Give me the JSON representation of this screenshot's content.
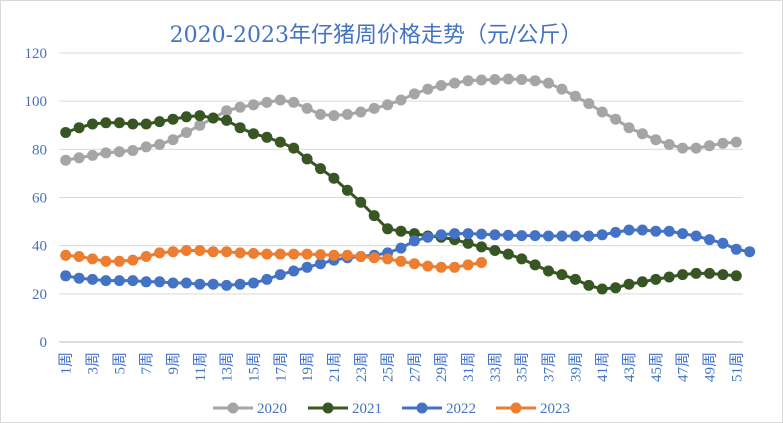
{
  "chart_data": {
    "type": "line",
    "title": "2020-2023年仔猪周价格走势（元/公斤）",
    "xlabel": "",
    "ylabel": "",
    "ylim": [
      0,
      120
    ],
    "yticks": [
      "0",
      "20",
      "40",
      "60",
      "80",
      "100",
      "120"
    ],
    "ytick_values": [
      0,
      20,
      40,
      60,
      80,
      100,
      120
    ],
    "x_tick_labels": [
      "1周",
      "3周",
      "5周",
      "7周",
      "9周",
      "11周",
      "13周",
      "15周",
      "17周",
      "19周",
      "21周",
      "23周",
      "25周",
      "27周",
      "29周",
      "31周",
      "33周",
      "35周",
      "37周",
      "39周",
      "41周",
      "43周",
      "45周",
      "47周",
      "49周",
      "51周"
    ],
    "x_tick_weeks": [
      1,
      3,
      5,
      7,
      9,
      11,
      13,
      15,
      17,
      19,
      21,
      23,
      25,
      27,
      29,
      31,
      33,
      35,
      37,
      39,
      41,
      43,
      45,
      47,
      49,
      51
    ],
    "grid": true,
    "legend_position": "bottom",
    "series": [
      {
        "name": "2020",
        "color": "#a5a5a5",
        "values": [
          75.5,
          76.5,
          77.5,
          78.5,
          79,
          79.5,
          81,
          82,
          84,
          87,
          90,
          93,
          96,
          97.5,
          98.5,
          99.5,
          100.5,
          99.5,
          97,
          94.5,
          94,
          94.5,
          95.5,
          97,
          98.5,
          100.5,
          103,
          105,
          106.5,
          107.5,
          108.5,
          108.8,
          109,
          109.2,
          109,
          108.5,
          107.5,
          105,
          102,
          99,
          95.5,
          92.5,
          89,
          86.5,
          84,
          82,
          80.5,
          80.5,
          81.5,
          82.5,
          83
        ]
      },
      {
        "name": "2021",
        "color": "#375623",
        "values": [
          87,
          89,
          90.5,
          91,
          91,
          90.5,
          90.5,
          91.5,
          92.5,
          93.5,
          94,
          93,
          92,
          89,
          86.5,
          85,
          83,
          80.5,
          76,
          72,
          68,
          63,
          58,
          52.5,
          47,
          46,
          45,
          44,
          43.5,
          42.5,
          41,
          39.5,
          38,
          36.5,
          34.5,
          32,
          29.5,
          28,
          26,
          23.5,
          22,
          22.5,
          24,
          25,
          26,
          27,
          28,
          28.5,
          28.5,
          28,
          27.5
        ]
      },
      {
        "name": "2022",
        "color": "#4472c4",
        "values": [
          27.5,
          26.5,
          26,
          25.5,
          25.5,
          25.5,
          25,
          25,
          24.5,
          24.5,
          24,
          24,
          23.5,
          24,
          24.5,
          26,
          28,
          29.5,
          31,
          32.5,
          34,
          35,
          35.5,
          36,
          37,
          39,
          42,
          43.5,
          44.5,
          45,
          45,
          44.8,
          44.5,
          44.3,
          44.2,
          44.2,
          44,
          44,
          44,
          44,
          44.5,
          45.5,
          46.5,
          46.5,
          46,
          46,
          45,
          44,
          42.5,
          41,
          38.5,
          37.5
        ]
      },
      {
        "name": "2023",
        "color": "#ed7d31",
        "values": [
          36,
          35.5,
          34.5,
          33.5,
          33.5,
          34,
          35.5,
          37,
          37.5,
          38,
          38,
          37.5,
          37.5,
          37,
          36.8,
          36.5,
          36.5,
          36.5,
          36.5,
          36.3,
          36,
          36,
          35.5,
          35,
          34.5,
          33.5,
          32.5,
          31.5,
          31,
          31,
          32,
          33
        ]
      }
    ]
  }
}
